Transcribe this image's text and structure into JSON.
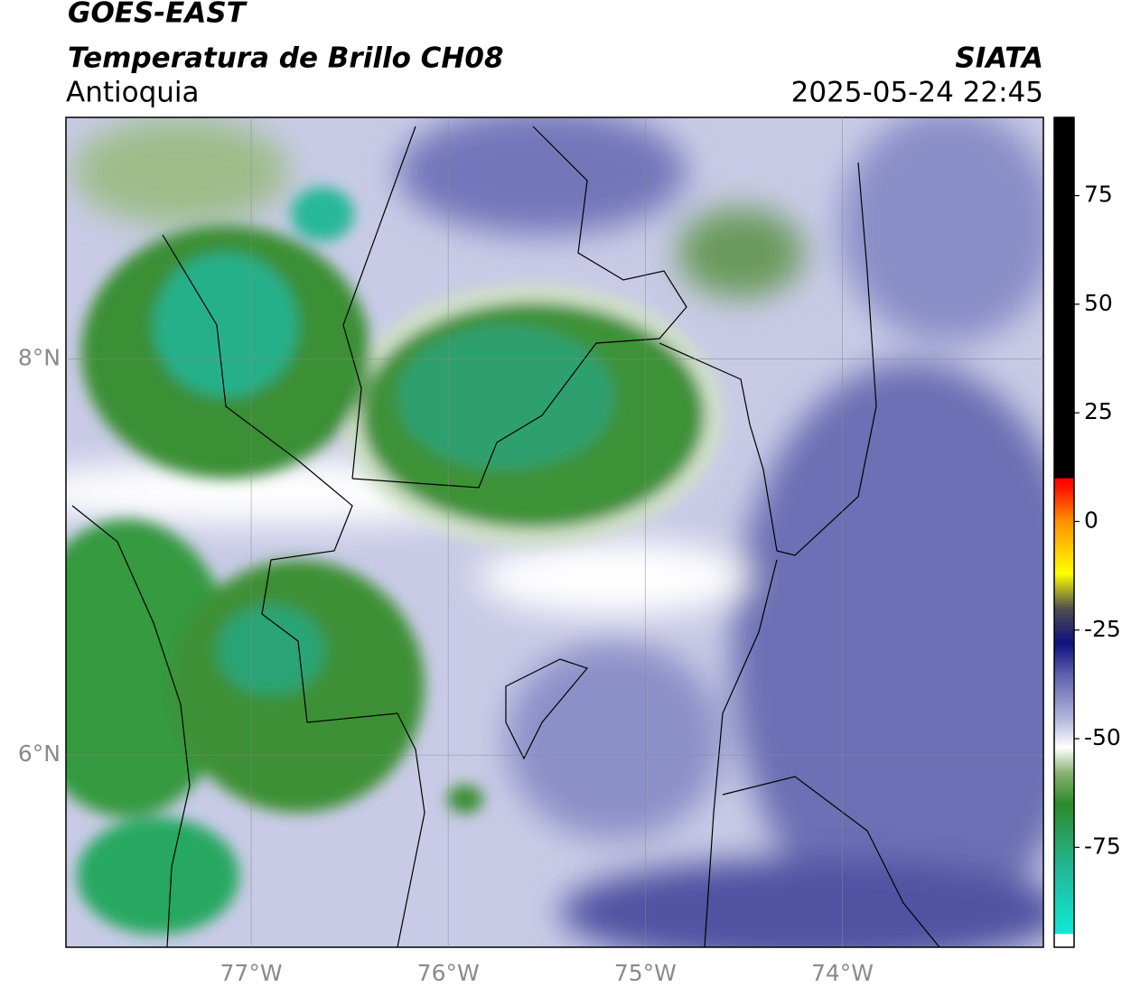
{
  "header": {
    "title": "GOES-EAST",
    "subtitle": "Temperatura de Brillo CH08",
    "region": "Antioquia",
    "source": "SIATA",
    "datetime": "2025-05-24 22:45"
  },
  "map": {
    "xlim": [
      -77.94,
      -72.98
    ],
    "ylim": [
      5.03,
      9.22
    ],
    "xticks": [
      {
        "value": -77,
        "label": "77°W"
      },
      {
        "value": -76,
        "label": "76°W"
      },
      {
        "value": -75,
        "label": "75°W"
      },
      {
        "value": -74,
        "label": "74°W"
      }
    ],
    "yticks": [
      {
        "value": 8,
        "label": "8°N"
      },
      {
        "value": 6,
        "label": "6°N"
      }
    ],
    "grid": true
  },
  "colorbar": {
    "lim": [
      -98,
      93
    ],
    "ticks": [
      75,
      50,
      25,
      0,
      -25,
      -50,
      -75
    ],
    "stops": [
      {
        "value": -98,
        "color": "#ffffff"
      },
      {
        "value": -95,
        "color": "#ffffff"
      },
      {
        "value": -94.9,
        "color": "#10e8d8"
      },
      {
        "value": -80,
        "color": "#22b898"
      },
      {
        "value": -65,
        "color": "#2e8a2a"
      },
      {
        "value": -58,
        "color": "#88b070"
      },
      {
        "value": -52,
        "color": "#ffffff"
      },
      {
        "value": -46,
        "color": "#b8bce0"
      },
      {
        "value": -35,
        "color": "#5a5eaa"
      },
      {
        "value": -28,
        "color": "#101080"
      },
      {
        "value": -20,
        "color": "#505050"
      },
      {
        "value": -12,
        "color": "#ffff00"
      },
      {
        "value": 0,
        "color": "#ff9000"
      },
      {
        "value": 8,
        "color": "#ff1000"
      },
      {
        "value": 9.9,
        "color": "#ff0000"
      },
      {
        "value": 10,
        "color": "#000000"
      },
      {
        "value": 93,
        "color": "#000000"
      }
    ]
  }
}
